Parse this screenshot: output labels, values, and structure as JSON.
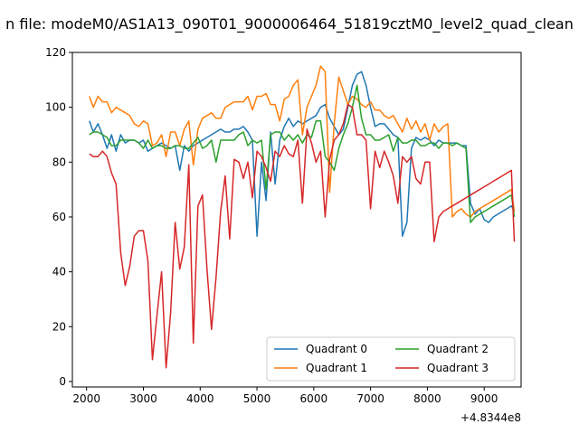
{
  "chart_data": {
    "type": "line",
    "title": "n file: modeM0/AS1A13_090T01_9000006464_51819cztM0_level2_quad_clean",
    "xlabel": "",
    "ylabel": "",
    "x_offset_label": "+4.8344e8",
    "xlim": [
      1750,
      9650
    ],
    "ylim": [
      -2,
      120
    ],
    "xticks": [
      2000,
      3000,
      4000,
      5000,
      6000,
      7000,
      8000,
      9000
    ],
    "yticks": [
      0,
      20,
      40,
      60,
      80,
      100,
      120
    ],
    "grid": false,
    "legend": {
      "placement": "lower right",
      "columns": 2
    },
    "x": [
      2050,
      2120,
      2200,
      2280,
      2360,
      2440,
      2520,
      2600,
      2680,
      2760,
      2840,
      2920,
      3000,
      3080,
      3160,
      3240,
      3320,
      3400,
      3480,
      3560,
      3640,
      3720,
      3800,
      3880,
      3960,
      4040,
      4120,
      4200,
      4280,
      4360,
      4440,
      4520,
      4600,
      4680,
      4760,
      4840,
      4920,
      5000,
      5080,
      5160,
      5240,
      5320,
      5400,
      5480,
      5560,
      5640,
      5720,
      5800,
      5880,
      5960,
      6040,
      6120,
      6200,
      6280,
      6360,
      6440,
      6520,
      6600,
      6680,
      6760,
      6840,
      6920,
      7000,
      7080,
      7160,
      7240,
      7320,
      7400,
      7480,
      7560,
      7640,
      7720,
      7800,
      7880,
      7960,
      8040,
      8120,
      8200,
      8280,
      8360,
      8440,
      8520,
      8600,
      8680,
      8760,
      8840,
      8920,
      9000,
      9080,
      9160,
      9240,
      9320,
      9400,
      9480,
      9530
    ],
    "series": [
      {
        "name": "Quadrant 0",
        "color": "#1f77b4",
        "values": [
          95,
          91,
          94,
          90,
          85,
          90,
          84,
          90,
          87,
          88,
          88,
          87,
          88,
          84,
          85,
          86,
          87,
          86,
          85,
          86,
          77,
          86,
          84,
          86,
          87,
          88,
          89,
          90,
          91,
          92,
          91,
          91,
          92,
          92,
          93,
          91,
          88,
          53,
          80,
          66,
          91,
          72,
          88,
          93,
          96,
          93,
          95,
          94,
          95,
          96,
          97,
          100,
          101,
          96,
          93,
          90,
          92,
          100,
          108,
          112,
          113,
          108,
          100,
          93,
          94,
          94,
          92,
          90,
          89,
          53,
          58,
          85,
          89,
          88,
          89,
          88,
          86,
          88,
          87,
          87,
          87,
          87,
          86,
          86,
          65,
          61,
          63,
          59,
          58,
          60,
          61,
          62,
          63,
          64,
          62
        ]
      },
      {
        "name": "Quadrant 1",
        "color": "#ff7f0e",
        "values": [
          104,
          100,
          104,
          102,
          102,
          98,
          100,
          99,
          98,
          97,
          94,
          93,
          95,
          94,
          86,
          87,
          90,
          82,
          91,
          91,
          86,
          92,
          95,
          79,
          92,
          96,
          97,
          98,
          96,
          96,
          100,
          101,
          102,
          102,
          102,
          104,
          99,
          104,
          104,
          105,
          101,
          101,
          95,
          103,
          104,
          108,
          110,
          90,
          100,
          104,
          108,
          115,
          113,
          69,
          94,
          111,
          106,
          101,
          104,
          103,
          101,
          100,
          102,
          99,
          99,
          97,
          96,
          97,
          94,
          91,
          96,
          92,
          95,
          91,
          94,
          88,
          94,
          91,
          93,
          94,
          60,
          62,
          63,
          61,
          60,
          62,
          63,
          64,
          65,
          66,
          67,
          68,
          69,
          70,
          62
        ]
      },
      {
        "name": "Quadrant 2",
        "color": "#2ca02c",
        "values": [
          90,
          91,
          91,
          90,
          89,
          86,
          86,
          88,
          88,
          88,
          88,
          87,
          85,
          88,
          85,
          86,
          86,
          85,
          85,
          86,
          86,
          85,
          85,
          87,
          89,
          85,
          86,
          88,
          80,
          88,
          88,
          88,
          88,
          90,
          91,
          86,
          88,
          87,
          88,
          70,
          90,
          91,
          91,
          88,
          90,
          88,
          90,
          87,
          90,
          89,
          95,
          95,
          82,
          80,
          77,
          85,
          90,
          94,
          100,
          108,
          96,
          90,
          90,
          88,
          88,
          89,
          90,
          84,
          89,
          87,
          87,
          88,
          88,
          86,
          86,
          87,
          87,
          85,
          87,
          87,
          86,
          87,
          86,
          85,
          58,
          60,
          61,
          62,
          63,
          64,
          65,
          66,
          67,
          68,
          60
        ]
      },
      {
        "name": "Quadrant 3",
        "color": "#d62728",
        "values": [
          83,
          82,
          82,
          84,
          82,
          76,
          72,
          47,
          35,
          42,
          53,
          55,
          55,
          44,
          8,
          24,
          40,
          5,
          25,
          58,
          41,
          49,
          79,
          14,
          64,
          68,
          41,
          19,
          38,
          62,
          75,
          52,
          81,
          80,
          74,
          80,
          67,
          84,
          82,
          78,
          73,
          84,
          82,
          86,
          83,
          82,
          88,
          65,
          92,
          87,
          80,
          84,
          60,
          81,
          88,
          90,
          94,
          101,
          100,
          90,
          90,
          88,
          63,
          84,
          78,
          84,
          80,
          75,
          65,
          82,
          80,
          82,
          74,
          72,
          80,
          80,
          51,
          60,
          62,
          63,
          64,
          65,
          66,
          67,
          68,
          69,
          70,
          71,
          72,
          73,
          74,
          75,
          76,
          77,
          51
        ]
      }
    ]
  }
}
